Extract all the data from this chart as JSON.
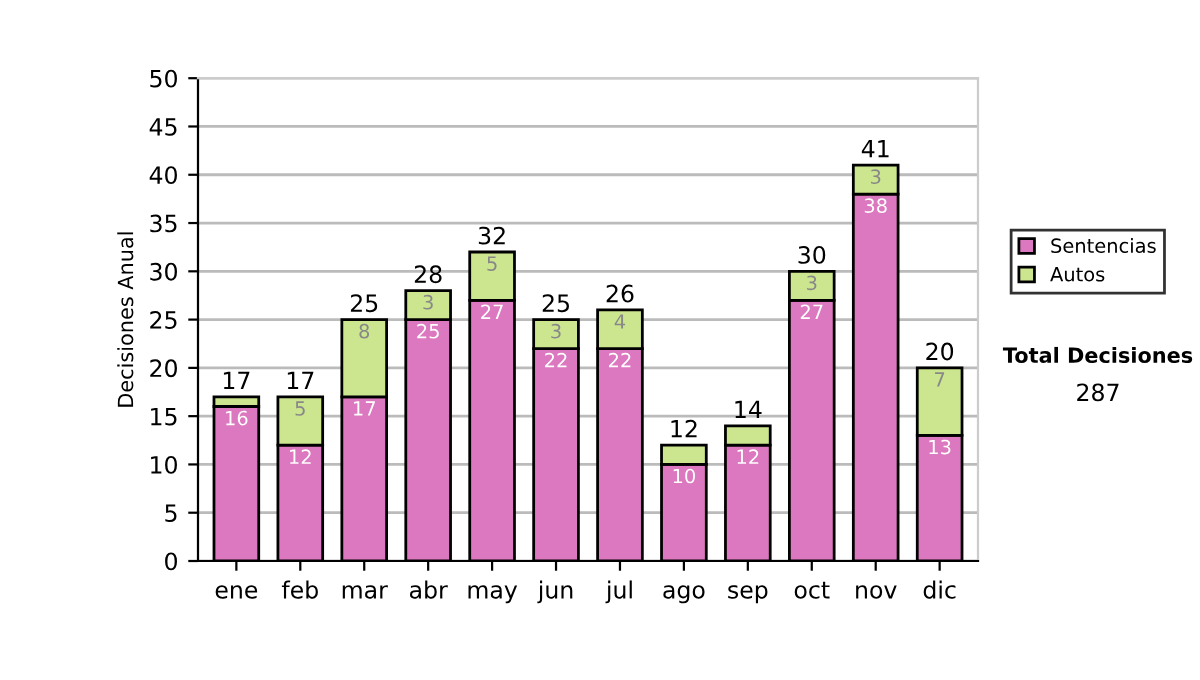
{
  "chart_data": {
    "type": "bar",
    "stacked": true,
    "ylabel": "Decisiones Anual",
    "categories": [
      "ene",
      "feb",
      "mar",
      "abr",
      "may",
      "jun",
      "jul",
      "ago",
      "sep",
      "oct",
      "nov",
      "dic"
    ],
    "series": [
      {
        "name": "Sentencias",
        "color": "#dc78bf",
        "values": [
          16,
          12,
          17,
          25,
          27,
          22,
          22,
          10,
          12,
          27,
          38,
          13
        ],
        "value_labels": [
          "16",
          "12",
          "17",
          "25",
          "27",
          "22",
          "22",
          "10",
          "12",
          "27",
          "38",
          "13"
        ]
      },
      {
        "name": "Autos",
        "color": "#cce58f",
        "values": [
          1,
          5,
          8,
          3,
          5,
          3,
          4,
          2,
          2,
          3,
          3,
          7
        ],
        "value_labels": [
          null,
          "5",
          "8",
          "3",
          "5",
          "3",
          "4",
          null,
          null,
          "3",
          "3",
          "7"
        ]
      }
    ],
    "totals": [
      "17",
      "17",
      "25",
      "28",
      "32",
      "25",
      "26",
      "12",
      "14",
      "30",
      "41",
      "20"
    ],
    "ylim": [
      0,
      50
    ],
    "yticks": [
      0,
      5,
      10,
      15,
      20,
      25,
      30,
      35,
      40,
      45,
      50
    ],
    "grid": "y",
    "legend": "right",
    "annotations": [
      "Total Decisiones",
      "287"
    ]
  }
}
